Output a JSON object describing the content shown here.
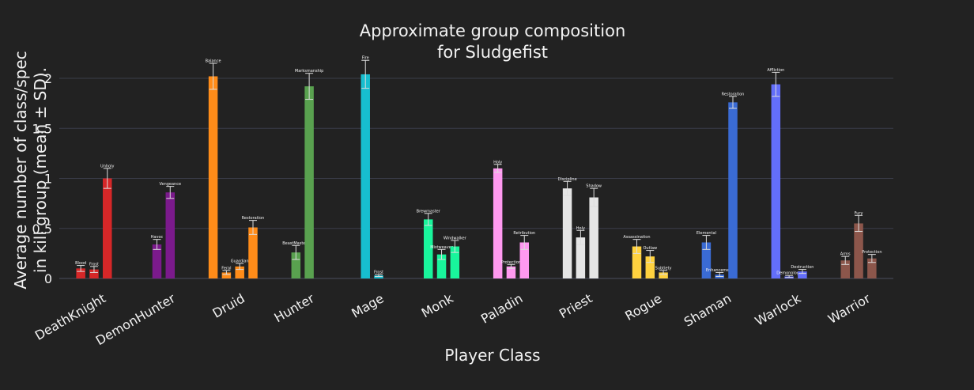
{
  "chart_data": {
    "type": "bar",
    "title_lines": [
      "Approximate group composition",
      "for Sludgefist"
    ],
    "xlabel": "Player Class",
    "ylabel_lines": [
      "Average number of class/spec",
      "in kill group (mean ± SD)."
    ],
    "ylim": [
      0,
      2.2
    ],
    "yticks": [
      0,
      0.5,
      1,
      1.5,
      2
    ],
    "ytick_labels": [
      "0",
      "0.5",
      "1",
      "1.5",
      "2"
    ],
    "grid": true,
    "legend": "none",
    "categories": [
      {
        "name": "DeathKnight",
        "color": "#d62728",
        "specs": [
          {
            "spec": "Blood",
            "value": 0.1,
            "sd": 0.03
          },
          {
            "spec": "Frost",
            "value": 0.09,
            "sd": 0.03
          },
          {
            "spec": "Unholy",
            "value": 1.0,
            "sd": 0.1
          }
        ]
      },
      {
        "name": "DemonHunter",
        "color": "#7b1a8c",
        "specs": [
          {
            "spec": "Havoc",
            "value": 0.34,
            "sd": 0.05
          },
          {
            "spec": "Vengeance",
            "value": 0.86,
            "sd": 0.06
          }
        ]
      },
      {
        "name": "Druid",
        "color": "#ff8c19",
        "specs": [
          {
            "spec": "Balance",
            "value": 2.02,
            "sd": 0.13
          },
          {
            "spec": "Feral",
            "value": 0.06,
            "sd": 0.02
          },
          {
            "spec": "Guardian",
            "value": 0.12,
            "sd": 0.03
          },
          {
            "spec": "Restoration",
            "value": 0.51,
            "sd": 0.07
          }
        ]
      },
      {
        "name": "Hunter",
        "color": "#59a14f",
        "specs": [
          {
            "spec": "BeastMastery",
            "value": 0.26,
            "sd": 0.07
          },
          {
            "spec": "Marksmanship",
            "value": 1.92,
            "sd": 0.13
          }
        ]
      },
      {
        "name": "Mage",
        "color": "#17becf",
        "specs": [
          {
            "spec": "Fire",
            "value": 2.04,
            "sd": 0.14
          },
          {
            "spec": "Frost",
            "value": 0.03,
            "sd": 0.01
          }
        ]
      },
      {
        "name": "Monk",
        "color": "#19f59c",
        "specs": [
          {
            "spec": "Brewmaster",
            "value": 0.59,
            "sd": 0.06
          },
          {
            "spec": "Mistweaver",
            "value": 0.24,
            "sd": 0.05
          },
          {
            "spec": "Windwalker",
            "value": 0.32,
            "sd": 0.06
          }
        ]
      },
      {
        "name": "Paladin",
        "color": "#ff99f0",
        "specs": [
          {
            "spec": "Holy",
            "value": 1.1,
            "sd": 0.04
          },
          {
            "spec": "Protection",
            "value": 0.12,
            "sd": 0.02
          },
          {
            "spec": "Retribution",
            "value": 0.36,
            "sd": 0.07
          }
        ]
      },
      {
        "name": "Priest",
        "color": "#e5e5e5",
        "specs": [
          {
            "spec": "Discipline",
            "value": 0.9,
            "sd": 0.07
          },
          {
            "spec": "Holy",
            "value": 0.41,
            "sd": 0.07
          },
          {
            "spec": "Shadow",
            "value": 0.81,
            "sd": 0.09
          }
        ]
      },
      {
        "name": "Rogue",
        "color": "#ffd23f",
        "specs": [
          {
            "spec": "Assassination",
            "value": 0.32,
            "sd": 0.07
          },
          {
            "spec": "Outlaw",
            "value": 0.22,
            "sd": 0.06
          },
          {
            "spec": "Subtlety",
            "value": 0.06,
            "sd": 0.02
          }
        ]
      },
      {
        "name": "Shaman",
        "color": "#3a6bd4",
        "specs": [
          {
            "spec": "Elemental",
            "value": 0.36,
            "sd": 0.07
          },
          {
            "spec": "Enhancement",
            "value": 0.04,
            "sd": 0.02
          },
          {
            "spec": "Restoration",
            "value": 1.76,
            "sd": 0.06
          }
        ]
      },
      {
        "name": "Warlock",
        "color": "#636efa",
        "specs": [
          {
            "spec": "Affliction",
            "value": 1.94,
            "sd": 0.12
          },
          {
            "spec": "Demonology",
            "value": 0.02,
            "sd": 0.01
          },
          {
            "spec": "Destruction",
            "value": 0.07,
            "sd": 0.02
          }
        ]
      },
      {
        "name": "Warrior",
        "color": "#8c564b",
        "specs": [
          {
            "spec": "Arms",
            "value": 0.18,
            "sd": 0.04
          },
          {
            "spec": "Fury",
            "value": 0.55,
            "sd": 0.08
          },
          {
            "spec": "Protection",
            "value": 0.2,
            "sd": 0.04
          }
        ]
      }
    ]
  }
}
